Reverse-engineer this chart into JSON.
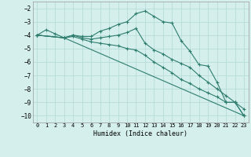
{
  "xlabel": "Humidex (Indice chaleur)",
  "bg_color": "#d4efec",
  "line_color": "#2e7d6e",
  "grid_color": "#b8ddd8",
  "xlim": [
    -0.5,
    23.5
  ],
  "ylim": [
    -10.5,
    -1.5
  ],
  "yticks": [
    -2,
    -3,
    -4,
    -5,
    -6,
    -7,
    -8,
    -9,
    -10
  ],
  "xticks": [
    0,
    1,
    2,
    3,
    4,
    5,
    6,
    7,
    8,
    9,
    10,
    11,
    12,
    13,
    14,
    15,
    16,
    17,
    18,
    19,
    20,
    21,
    22,
    23
  ],
  "line1_x": [
    0,
    1,
    2,
    3,
    4,
    5,
    6,
    7,
    8,
    9,
    10,
    11,
    12,
    13,
    14,
    15,
    16,
    17,
    18,
    19,
    20,
    21,
    22,
    23
  ],
  "line1_y": [
    -4.0,
    -3.6,
    -3.9,
    -4.2,
    -4.0,
    -4.1,
    -4.1,
    -3.7,
    -3.5,
    -3.2,
    -3.0,
    -2.4,
    -2.2,
    -2.6,
    -3.0,
    -3.1,
    -4.4,
    -5.2,
    -6.2,
    -6.3,
    -7.5,
    -9.0,
    -9.0,
    -10.0
  ],
  "line2_x": [
    0,
    3,
    4,
    5,
    6,
    7,
    8,
    9,
    10,
    11,
    12,
    13,
    14,
    15,
    16,
    17,
    18,
    19,
    20,
    21,
    22,
    23
  ],
  "line2_y": [
    -4.0,
    -4.2,
    -4.0,
    -4.2,
    -4.3,
    -4.2,
    -4.1,
    -4.0,
    -3.8,
    -3.5,
    -4.6,
    -5.1,
    -5.4,
    -5.8,
    -6.1,
    -6.4,
    -7.0,
    -7.5,
    -8.0,
    -8.5,
    -9.0,
    -9.5
  ],
  "line3_x": [
    0,
    3,
    4,
    5,
    6,
    7,
    8,
    9,
    10,
    11,
    12,
    13,
    14,
    15,
    16,
    17,
    18,
    19,
    20,
    21,
    22,
    23
  ],
  "line3_y": [
    -4.0,
    -4.2,
    -4.1,
    -4.3,
    -4.5,
    -4.6,
    -4.7,
    -4.8,
    -5.0,
    -5.1,
    -5.5,
    -6.0,
    -6.4,
    -6.8,
    -7.3,
    -7.6,
    -8.0,
    -8.3,
    -8.6,
    -9.0,
    -9.0,
    -10.0
  ],
  "line4_x": [
    0,
    3,
    23
  ],
  "line4_y": [
    -4.0,
    -4.2,
    -10.0
  ]
}
